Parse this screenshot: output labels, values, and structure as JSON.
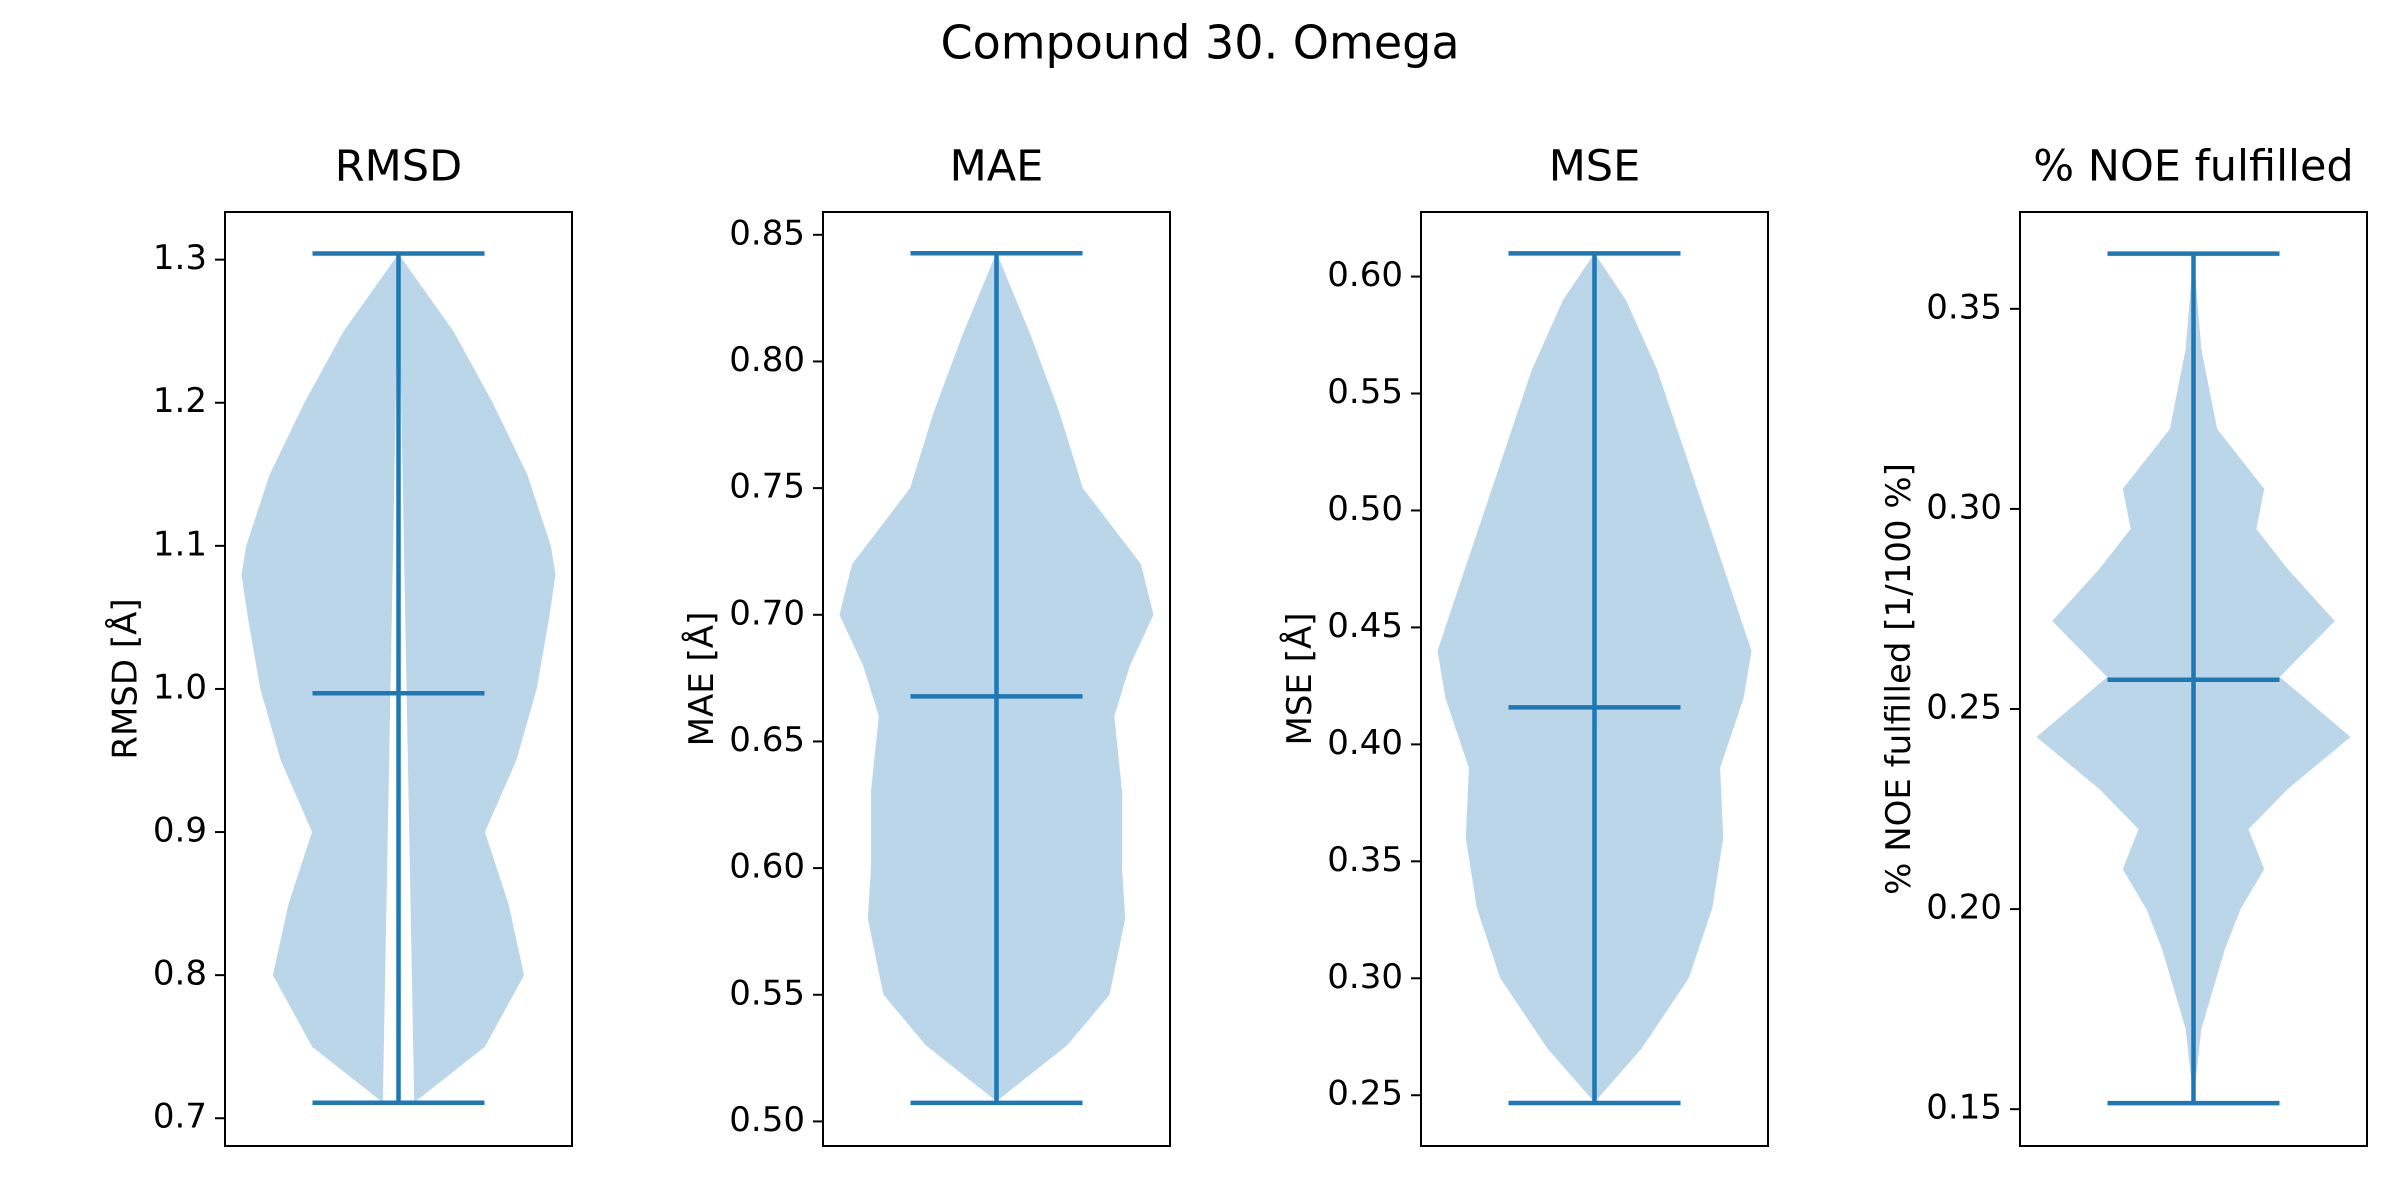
{
  "title": "Compound 30. Omega",
  "chart_data": [
    {
      "type": "violin",
      "title": "RMSD",
      "y_label": "RMSD [Å]",
      "color": "#1f77b4",
      "ylim": [
        0.6806,
        1.3333
      ],
      "yticks": [
        0.7,
        0.8,
        0.9,
        {
          "value": 1,
          "label": "1.0"
        },
        1.1,
        1.2,
        1.3
      ],
      "min": 0.7108,
      "max": 1.3043,
      "median": 0.997,
      "density_y": [
        0.711,
        0.75,
        0.8,
        0.85,
        0.9,
        0.95,
        1.0,
        1.05,
        1.08,
        1.1,
        1.15,
        1.2,
        1.25,
        1.304
      ],
      "density": [
        0.1,
        0.55,
        0.8,
        0.7,
        0.55,
        0.75,
        0.88,
        0.96,
        1.0,
        0.97,
        0.82,
        0.6,
        0.35,
        0
      ]
    },
    {
      "type": "violin",
      "title": "MAE",
      "y_label": "MAE [Å]",
      "color": "#1f77b4",
      "ylim": [
        0.4903,
        0.859
      ],
      "yticks": [
        {
          "value": 0.5,
          "label": "0.50"
        },
        0.55,
        {
          "value": 0.6,
          "label": "0.60"
        },
        0.65,
        {
          "value": 0.7,
          "label": "0.70"
        },
        0.75,
        {
          "value": 0.8,
          "label": "0.80"
        },
        0.85
      ],
      "min": 0.5073,
      "max": 0.8427,
      "median": 0.6678,
      "density_y": [
        0.508,
        0.53,
        0.55,
        0.58,
        0.6,
        0.63,
        0.66,
        0.68,
        0.7,
        0.72,
        0.75,
        0.78,
        0.81,
        0.843
      ],
      "density": [
        0,
        0.45,
        0.72,
        0.82,
        0.8,
        0.8,
        0.75,
        0.85,
        1.0,
        0.92,
        0.55,
        0.4,
        0.22,
        0
      ]
    },
    {
      "type": "violin",
      "title": "MSE",
      "y_label": "MSE [Å]",
      "color": "#1f77b4",
      "ylim": [
        0.2283,
        0.6276
      ],
      "yticks": [
        0.25,
        {
          "value": 0.3,
          "label": "0.30"
        },
        0.35,
        {
          "value": 0.4,
          "label": "0.40"
        },
        0.45,
        {
          "value": 0.5,
          "label": "0.50"
        },
        0.55,
        {
          "value": 0.6,
          "label": "0.60"
        }
      ],
      "min": 0.2467,
      "max": 0.6099,
      "median": 0.4158,
      "density_y": [
        0.247,
        0.27,
        0.3,
        0.33,
        0.36,
        0.39,
        0.42,
        0.44,
        0.47,
        0.5,
        0.53,
        0.56,
        0.59,
        0.61
      ],
      "density": [
        0,
        0.3,
        0.6,
        0.75,
        0.82,
        0.8,
        0.95,
        1.0,
        0.85,
        0.7,
        0.55,
        0.4,
        0.2,
        0
      ]
    },
    {
      "type": "violin",
      "title": "% NOE fulfilled",
      "y_label": "% NOE fulfilled [1/100 %]",
      "color": "#1f77b4",
      "ylim": [
        0.1408,
        0.3742
      ],
      "yticks": [
        0.15,
        {
          "value": 0.2,
          "label": "0.20"
        },
        0.25,
        {
          "value": 0.3,
          "label": "0.30"
        },
        0.35
      ],
      "min": 0.1515,
      "max": 0.3638,
      "median": 0.2573,
      "density_y": [
        0.152,
        0.17,
        0.19,
        0.2,
        0.21,
        0.22,
        0.23,
        0.243,
        0.258,
        0.272,
        0.285,
        0.295,
        0.305,
        0.32,
        0.34,
        0.364
      ],
      "density": [
        0,
        0.05,
        0.2,
        0.3,
        0.45,
        0.35,
        0.6,
        1.0,
        0.55,
        0.9,
        0.6,
        0.4,
        0.45,
        0.15,
        0.05,
        0
      ]
    }
  ]
}
